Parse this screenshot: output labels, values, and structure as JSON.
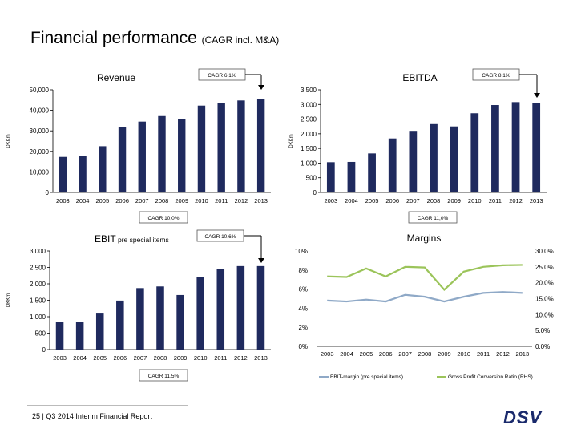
{
  "slide": {
    "title": "Financial performance",
    "title_suffix": "(CAGR incl. M&A)",
    "footer": "25 | Q3 2014 Interim Financial Report",
    "logo": "DSV"
  },
  "colors": {
    "bar": "#1f2a5e",
    "ebit_margin": "#8fa9c7",
    "gp_conversion": "#9bc45a",
    "callout_border": "#555555"
  },
  "chart_data": [
    {
      "type": "bar",
      "title": "Revenue",
      "ylabel": "DKKm",
      "categories": [
        "2003",
        "2004",
        "2005",
        "2006",
        "2007",
        "2008",
        "2009",
        "2010",
        "2011",
        "2012",
        "2013"
      ],
      "values": [
        17300,
        17700,
        22500,
        32000,
        34500,
        37200,
        35600,
        42300,
        43500,
        44800,
        45700
      ],
      "ylim": [
        0,
        50000
      ],
      "yticks": [
        0,
        10000,
        20000,
        30000,
        40000,
        50000
      ],
      "ytick_labels": [
        "0",
        "10,000",
        "20,000",
        "30,000",
        "40,000",
        "50,000"
      ],
      "cagr_top": "CAGR 6,1%",
      "cagr_bottom": null
    },
    {
      "type": "bar",
      "title": "EBITDA",
      "ylabel": "DKKm",
      "categories": [
        "2003",
        "2004",
        "2005",
        "2006",
        "2007",
        "2008",
        "2009",
        "2010",
        "2011",
        "2012",
        "2013"
      ],
      "values": [
        1030,
        1040,
        1330,
        1840,
        2100,
        2330,
        2250,
        2700,
        2980,
        3080,
        3050
      ],
      "ylim": [
        0,
        3500
      ],
      "yticks": [
        0,
        500,
        1000,
        1500,
        2000,
        2500,
        3000,
        3500
      ],
      "ytick_labels": [
        "0",
        "500",
        "1,000",
        "1,500",
        "2,000",
        "2,500",
        "3,000",
        "3,500"
      ],
      "cagr_top": "CAGR 8,1%",
      "cagr_bottom": "CAGR 11,0%"
    },
    {
      "type": "bar",
      "title": "EBIT",
      "title_suffix": "pre special items",
      "ylabel": "DKKm",
      "categories": [
        "2003",
        "2004",
        "2005",
        "2006",
        "2007",
        "2008",
        "2009",
        "2010",
        "2011",
        "2012",
        "2013"
      ],
      "values": [
        830,
        850,
        1120,
        1490,
        1870,
        1920,
        1660,
        2200,
        2440,
        2540,
        2540
      ],
      "ylim": [
        0,
        3000
      ],
      "yticks": [
        0,
        500,
        1000,
        1500,
        2000,
        2500,
        3000
      ],
      "ytick_labels": [
        "0",
        "500",
        "1,000",
        "1,500",
        "2,000",
        "2,500",
        "3,000"
      ],
      "cagr_top": "CAGR 10,6%",
      "cagr_above": "CAGR 10,0%",
      "cagr_bottom": "CAGR 11,5%"
    },
    {
      "type": "line",
      "title": "Margins",
      "x": [
        "2003",
        "2004",
        "2005",
        "2006",
        "2007",
        "2008",
        "2009",
        "2010",
        "2011",
        "2012",
        "2013"
      ],
      "series": [
        {
          "name": "EBIT-margin (pre special items)",
          "axis": "left",
          "values": [
            4.8,
            4.7,
            4.9,
            4.7,
            5.4,
            5.2,
            4.7,
            5.2,
            5.6,
            5.7,
            5.6
          ]
        },
        {
          "name": "Gross Profit Conversion Ratio (RHS)",
          "axis": "right",
          "values": [
            22.0,
            21.8,
            24.5,
            22.0,
            25.0,
            24.8,
            17.8,
            23.5,
            25.0,
            25.5,
            25.6
          ]
        }
      ],
      "ylim_left": [
        0,
        10
      ],
      "ylim_right": [
        0,
        30
      ],
      "yticks_left_labels": [
        "0%",
        "2%",
        "4%",
        "6%",
        "8%",
        "10%"
      ],
      "yticks_right_labels": [
        "0.0%",
        "5.0%",
        "10.0%",
        "15.0%",
        "20.0%",
        "25.0%",
        "30.0%"
      ],
      "legend": "bottom"
    }
  ]
}
